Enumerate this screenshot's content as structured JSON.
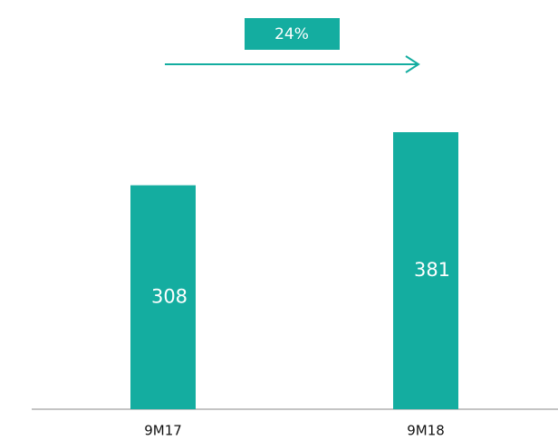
{
  "chart_data": {
    "type": "bar",
    "categories": [
      "9M17",
      "9M18"
    ],
    "values": [
      308,
      381
    ],
    "color": "#14ada0",
    "annotation": "24%"
  }
}
